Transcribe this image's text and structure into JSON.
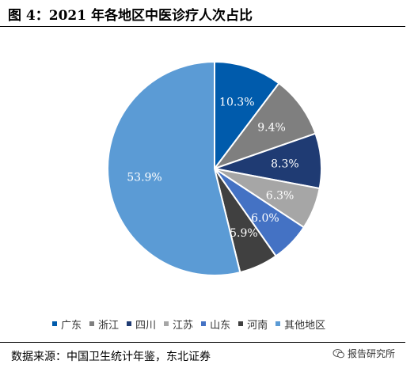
{
  "header": {
    "title": "图 4：2021 年各地区中医诊疗人次占比"
  },
  "chart_data": {
    "type": "pie",
    "title": "",
    "start_angle_deg": 0,
    "direction": "clockwise",
    "slices": [
      {
        "label": "广东",
        "value": 10.3,
        "display": "10.3%",
        "color": "#005bac",
        "label_color": "#ffffff"
      },
      {
        "label": "浙江",
        "value": 9.4,
        "display": "9.4%",
        "color": "#7f7f7f",
        "label_color": "#ffffff"
      },
      {
        "label": "四川",
        "value": 8.3,
        "display": "8.3%",
        "color": "#1f3b73",
        "label_color": "#ffffff"
      },
      {
        "label": "江苏",
        "value": 6.3,
        "display": "6.3%",
        "color": "#a6a6a6",
        "label_color": "#ffffff"
      },
      {
        "label": "山东",
        "value": 6.0,
        "display": "6.0%",
        "color": "#4472c4",
        "label_color": "#ffffff"
      },
      {
        "label": "河南",
        "value": 5.9,
        "display": "5.9%",
        "color": "#404040",
        "label_color": "#ffffff"
      },
      {
        "label": "其他地区",
        "value": 53.9,
        "display": "53.9%",
        "color": "#5b9bd5",
        "label_color": "#ffffff"
      }
    ],
    "legend_position": "bottom"
  },
  "footer": {
    "source": "数据来源：中国卫生统计年鉴，东北证券",
    "watermark": "报告研究所",
    "watermark_icon": "wechat-icon"
  }
}
